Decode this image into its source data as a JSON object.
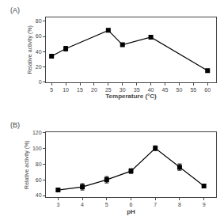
{
  "chart_data": [
    {
      "type": "line",
      "annotation": "(A)",
      "x": [
        5,
        10,
        25,
        30,
        40,
        60
      ],
      "values": [
        34,
        44,
        68,
        49,
        59,
        15
      ],
      "yerr": [
        2,
        3,
        2,
        2,
        2,
        2
      ],
      "xlabel": "Temperature (°C)",
      "ylabel": "Relative activity (%)",
      "xlim": [
        3,
        63
      ],
      "xticks": [
        5,
        10,
        15,
        20,
        25,
        30,
        35,
        40,
        45,
        50,
        55,
        60
      ],
      "ylim": [
        0,
        85
      ],
      "yticks": [
        0,
        20,
        40,
        60,
        80
      ],
      "color": "#000000",
      "marker": "square",
      "grid": false
    },
    {
      "type": "line",
      "annotation": "(B)",
      "x": [
        3,
        4,
        5,
        6,
        7,
        8,
        9
      ],
      "values": [
        47,
        51,
        60,
        71,
        100,
        76,
        52
      ],
      "yerr": [
        2,
        4,
        4,
        3,
        3,
        4,
        2
      ],
      "xlabel": "pH",
      "ylabel": "Relative activity (%)",
      "xlim": [
        2.5,
        9.5
      ],
      "xticks": [
        3,
        4,
        5,
        6,
        7,
        8,
        9
      ],
      "ylim": [
        38,
        120
      ],
      "yticks": [
        40,
        60,
        80,
        100,
        120
      ],
      "color": "#000000",
      "marker": "square",
      "grid": false
    }
  ]
}
